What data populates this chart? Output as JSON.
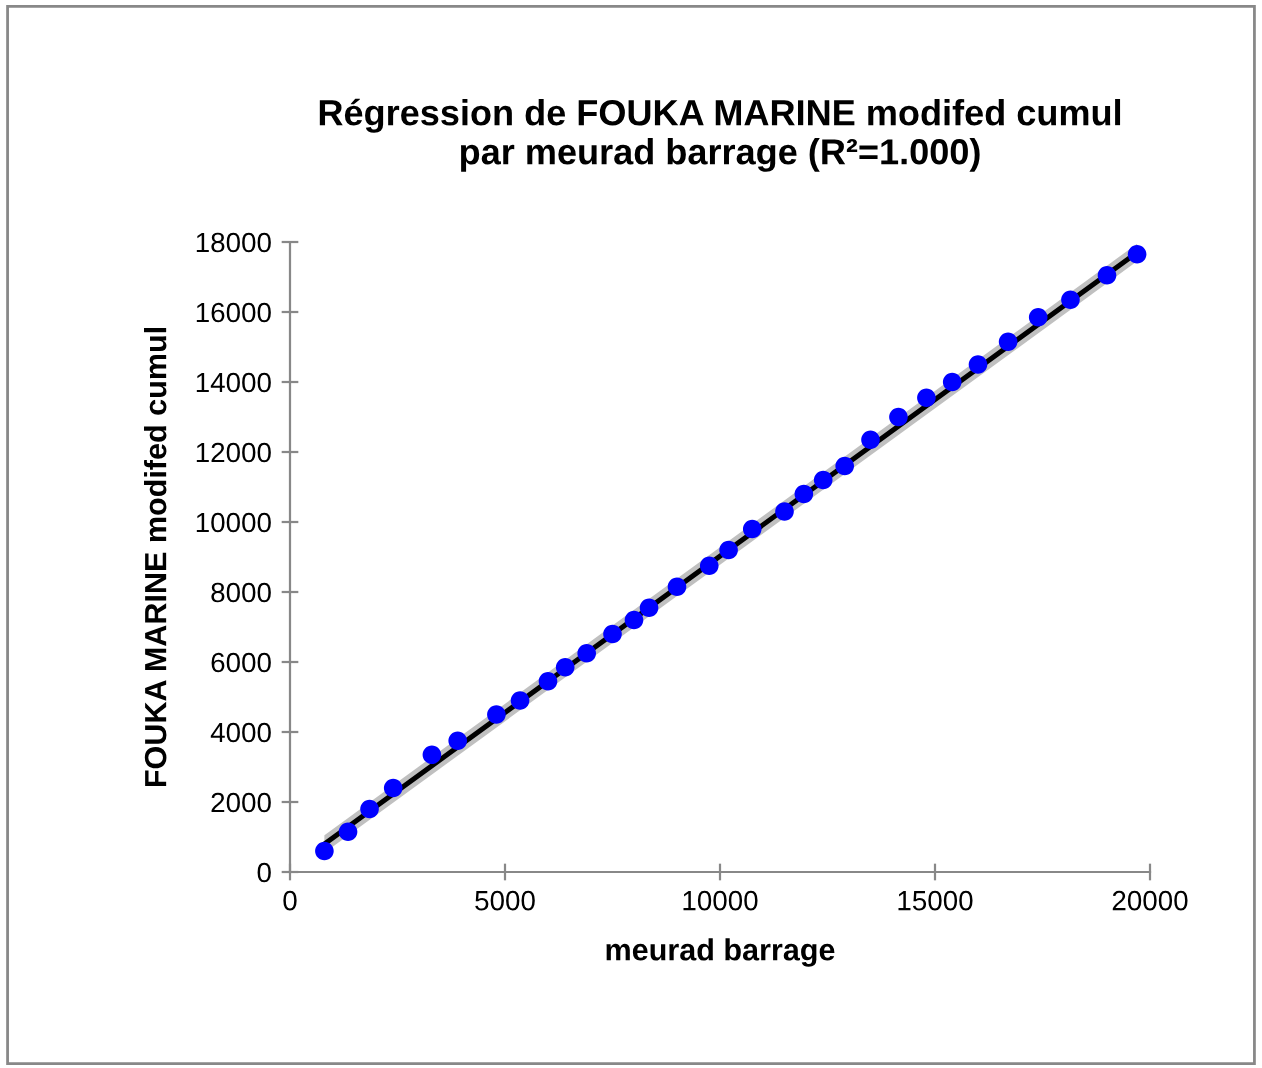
{
  "chart_data": {
    "type": "scatter",
    "title": "Régression de FOUKA MARINE modifed cumul\npar meurad barrage (R²=1.000)",
    "xlabel": "meurad barrage",
    "ylabel": "FOUKA MARINE modifed cumul",
    "xlim": [
      0,
      20000
    ],
    "xticks": [
      0,
      5000,
      10000,
      15000,
      20000
    ],
    "ylim": [
      0,
      18000
    ],
    "yticks": [
      0,
      2000,
      4000,
      6000,
      8000,
      10000,
      12000,
      14000,
      16000,
      18000
    ],
    "grid": false,
    "series": [
      {
        "type": "line",
        "color": "#000000",
        "x": [
          800,
          19700
        ],
        "values": [
          800,
          17700
        ],
        "lower": [
          550,
          17450
        ],
        "upper": [
          1050,
          17950
        ],
        "marker": "none"
      },
      {
        "color": "#0000ff",
        "marker": "circle",
        "x": [
          800,
          1350,
          1850,
          2400,
          3300,
          3900,
          4800,
          5350,
          6000,
          6400,
          6900,
          7500,
          8000,
          8350,
          9000,
          9750,
          10200,
          10750,
          11500,
          11950,
          12400,
          12900,
          13500,
          14150,
          14800,
          15400,
          16000,
          16700,
          17400,
          18150,
          19000,
          19700
        ],
        "values": [
          600,
          1150,
          1800,
          2400,
          3350,
          3750,
          4500,
          4900,
          5450,
          5850,
          6250,
          6800,
          7200,
          7550,
          8150,
          8750,
          9200,
          9800,
          10300,
          10800,
          11200,
          11600,
          12350,
          13000,
          13550,
          14000,
          14500,
          15150,
          15850,
          16350,
          17050,
          17650
        ]
      }
    ]
  }
}
